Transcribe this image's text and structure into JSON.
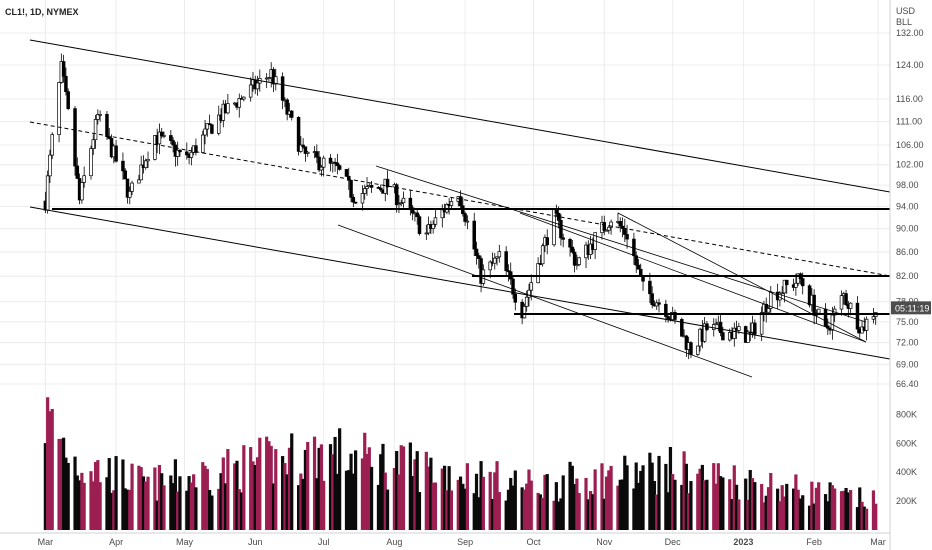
{
  "header": {
    "symbol_line": "CL1!, 1D, NYMEX"
  },
  "price_axis": {
    "currency": "USD",
    "unit": "BLL",
    "ticks": [
      "132.00",
      "124.00",
      "116.00",
      "111.00",
      "106.00",
      "102.00",
      "98.00",
      "94.00",
      "90.00",
      "86.00",
      "82.00",
      "78.00",
      "75.00",
      "72.00",
      "69.00",
      "66.40"
    ],
    "current_tag": "05:11:19",
    "current_price": 77
  },
  "volume_axis": {
    "ticks": [
      "800K",
      "600K",
      "400K",
      "200K"
    ]
  },
  "time_axis": {
    "labels": [
      "Mar",
      "Apr",
      "May",
      "Jun",
      "Jul",
      "Aug",
      "Sep",
      "Oct",
      "Nov",
      "Dec",
      "2023",
      "Feb",
      "Mar"
    ]
  },
  "colors": {
    "up": "#ffffff",
    "down": "#000000",
    "outline": "#000000",
    "volume_up": "#9c1f52",
    "volume_down": "#0a0a0a",
    "price_tag_bg": "#4d4d4d",
    "grid": "#ececec",
    "axis_line": "#d0d0d0"
  },
  "chart_data": {
    "type": "candlestick",
    "instrument": "CL1!",
    "timeframe": "1D",
    "exchange": "NYMEX",
    "ylim": [
      66.4,
      132
    ],
    "y_scale": "log",
    "x_range": [
      "Feb 2022",
      "Mar 2023"
    ],
    "grid": true,
    "close_path": [
      {
        "date": "2022-03-01",
        "close": 95
      },
      {
        "date": "2022-03-08",
        "close": 123
      },
      {
        "date": "2022-03-16",
        "close": 95
      },
      {
        "date": "2022-03-24",
        "close": 112
      },
      {
        "date": "2022-04-07",
        "close": 96
      },
      {
        "date": "2022-04-18",
        "close": 108
      },
      {
        "date": "2022-05-02",
        "close": 103
      },
      {
        "date": "2022-05-16",
        "close": 112
      },
      {
        "date": "2022-06-08",
        "close": 122
      },
      {
        "date": "2022-06-22",
        "close": 104
      },
      {
        "date": "2022-07-07",
        "close": 101
      },
      {
        "date": "2022-07-14",
        "close": 96
      },
      {
        "date": "2022-07-29",
        "close": 98
      },
      {
        "date": "2022-08-15",
        "close": 89
      },
      {
        "date": "2022-08-29",
        "close": 97
      },
      {
        "date": "2022-09-08",
        "close": 82
      },
      {
        "date": "2022-09-16",
        "close": 85
      },
      {
        "date": "2022-09-26",
        "close": 76.7
      },
      {
        "date": "2022-10-10",
        "close": 92
      },
      {
        "date": "2022-10-20",
        "close": 84
      },
      {
        "date": "2022-11-04",
        "close": 92
      },
      {
        "date": "2022-11-11",
        "close": 89
      },
      {
        "date": "2022-11-18",
        "close": 80
      },
      {
        "date": "2022-11-28",
        "close": 77
      },
      {
        "date": "2022-12-09",
        "close": 71
      },
      {
        "date": "2022-12-16",
        "close": 74
      },
      {
        "date": "2023-01-04",
        "close": 73
      },
      {
        "date": "2023-01-13",
        "close": 79
      },
      {
        "date": "2023-01-26",
        "close": 81.5
      },
      {
        "date": "2023-02-06",
        "close": 73.5
      },
      {
        "date": "2023-02-14",
        "close": 79
      },
      {
        "date": "2023-02-22",
        "close": 74
      },
      {
        "date": "2023-02-28",
        "close": 77
      }
    ],
    "horizontal_levels": [
      94.0,
      82.0,
      76.7
    ],
    "volume_scale_max": 900000,
    "volume_samples": [
      {
        "date": "2022-03-01",
        "volume": 850000
      },
      {
        "date": "2022-03-15",
        "volume": 500000
      },
      {
        "date": "2022-04-15",
        "volume": 340000
      },
      {
        "date": "2022-06-30",
        "volume": 580000
      },
      {
        "date": "2022-09-30",
        "volume": 330000
      },
      {
        "date": "2022-11-30",
        "volume": 450000
      },
      {
        "date": "2023-02-28",
        "volume": 210000
      }
    ]
  }
}
